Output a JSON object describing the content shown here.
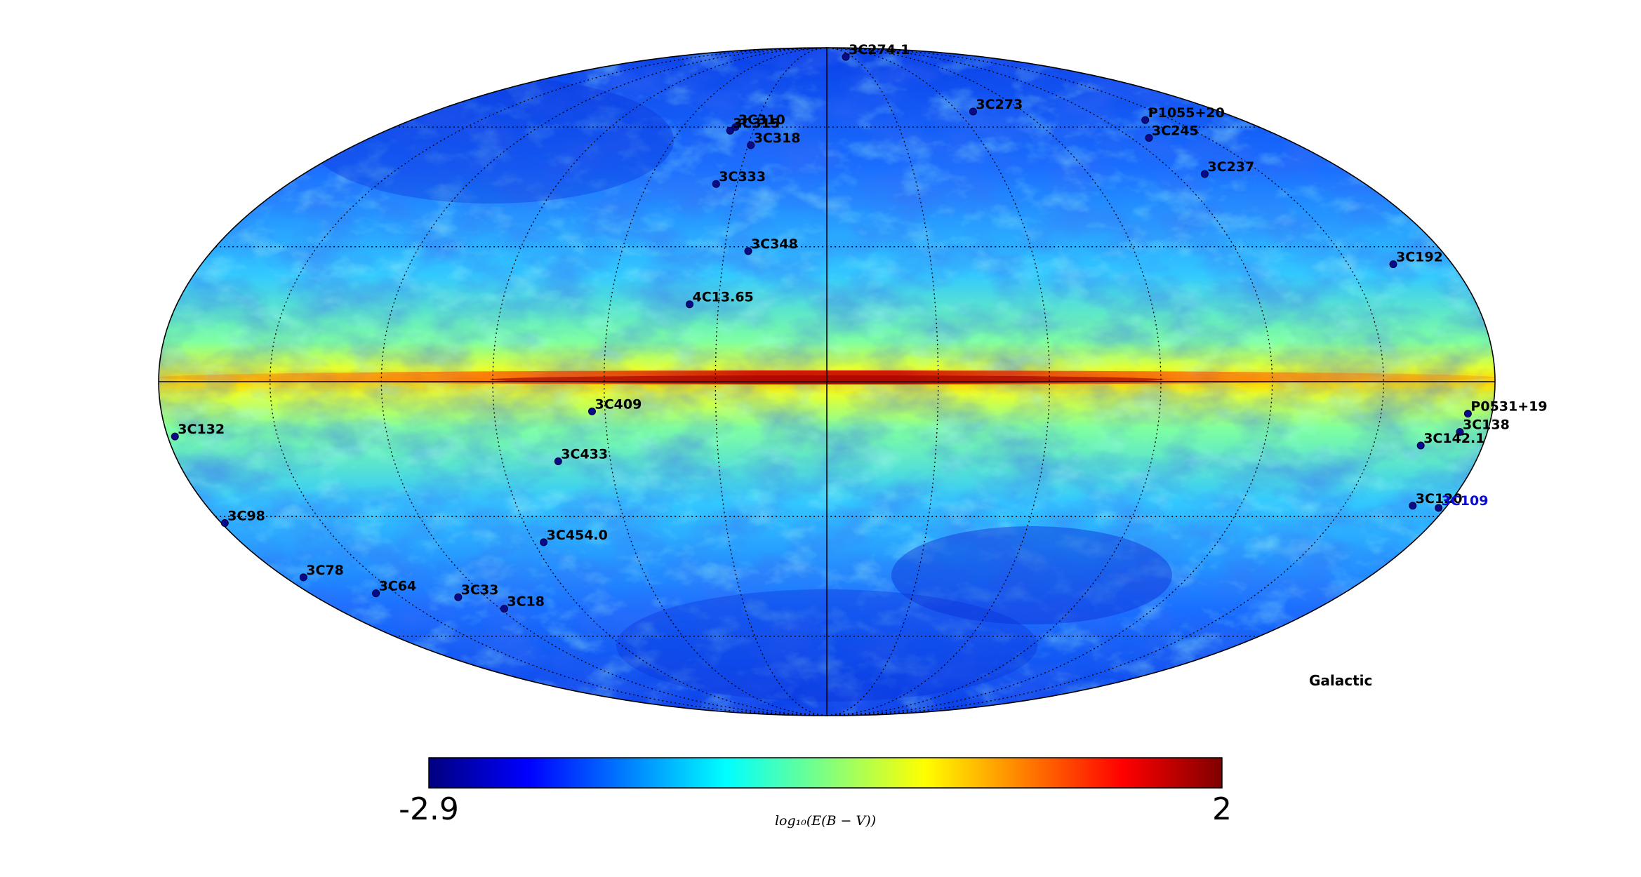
{
  "map": {
    "projection": "mollweide",
    "coordinate_frame_label": "Galactic",
    "graticule": {
      "longitude_step_deg": 30,
      "latitude_step_deg": 30,
      "style": "dotted"
    },
    "quantity": "log10 E(B-V) dust reddening"
  },
  "colorbar": {
    "min_label": "-2.9",
    "max_label": "2",
    "min": -2.9,
    "max": 2,
    "label": "log₁₀(E(B − V))",
    "colormap": "jet",
    "colors": [
      "#00007f",
      "#0000ff",
      "#007fff",
      "#00ffff",
      "#7fff7f",
      "#ffff00",
      "#ff7f00",
      "#ff0000",
      "#7f0000"
    ]
  },
  "sources": [
    {
      "name": "3C274.1",
      "lon": -22,
      "lat": 84
    },
    {
      "name": "3C273",
      "lon": -67,
      "lat": 64.5
    },
    {
      "name": "P1055+20",
      "lon": -138,
      "lat": 62
    },
    {
      "name": "3C245",
      "lon": -127,
      "lat": 57
    },
    {
      "name": "3C237",
      "lon": -130,
      "lat": 47.5
    },
    {
      "name": "3C192",
      "lon": -163,
      "lat": 26
    },
    {
      "name": "3C310",
      "lon": 38,
      "lat": 60
    },
    {
      "name": "3C315",
      "lon": 39.5,
      "lat": 59
    },
    {
      "name": "3C318",
      "lon": 29,
      "lat": 55
    },
    {
      "name": "3C333",
      "lon": 37,
      "lat": 45
    },
    {
      "name": "3C348",
      "lon": 23,
      "lat": 29
    },
    {
      "name": "4C13.65",
      "lon": 38,
      "lat": 17
    },
    {
      "name": "3C409",
      "lon": 63.5,
      "lat": -6.5
    },
    {
      "name": "3C433",
      "lon": 74.5,
      "lat": -17.5
    },
    {
      "name": "3C454.0",
      "lon": 87,
      "lat": -36
    },
    {
      "name": "3C132",
      "lon": 178,
      "lat": -12
    },
    {
      "name": "3C98",
      "lon": 179,
      "lat": -31.5
    },
    {
      "name": "3C78",
      "lon": 174,
      "lat": -44.5
    },
    {
      "name": "3C64",
      "lon": 157,
      "lat": -48.5
    },
    {
      "name": "3C33",
      "lon": 130,
      "lat": -49.5
    },
    {
      "name": "3C18",
      "lon": 118.5,
      "lat": -52.5
    },
    {
      "name": "P0531+19",
      "lon": -173.5,
      "lat": -7
    },
    {
      "name": "3C138",
      "lon": -172.5,
      "lat": -11
    },
    {
      "name": "3C142.1",
      "lon": -163,
      "lat": -14
    },
    {
      "name": "3C120",
      "lon": -170,
      "lat": -27.5
    },
    {
      "name": "3C109",
      "lon": -178,
      "lat": -28,
      "highlight": true
    }
  ]
}
